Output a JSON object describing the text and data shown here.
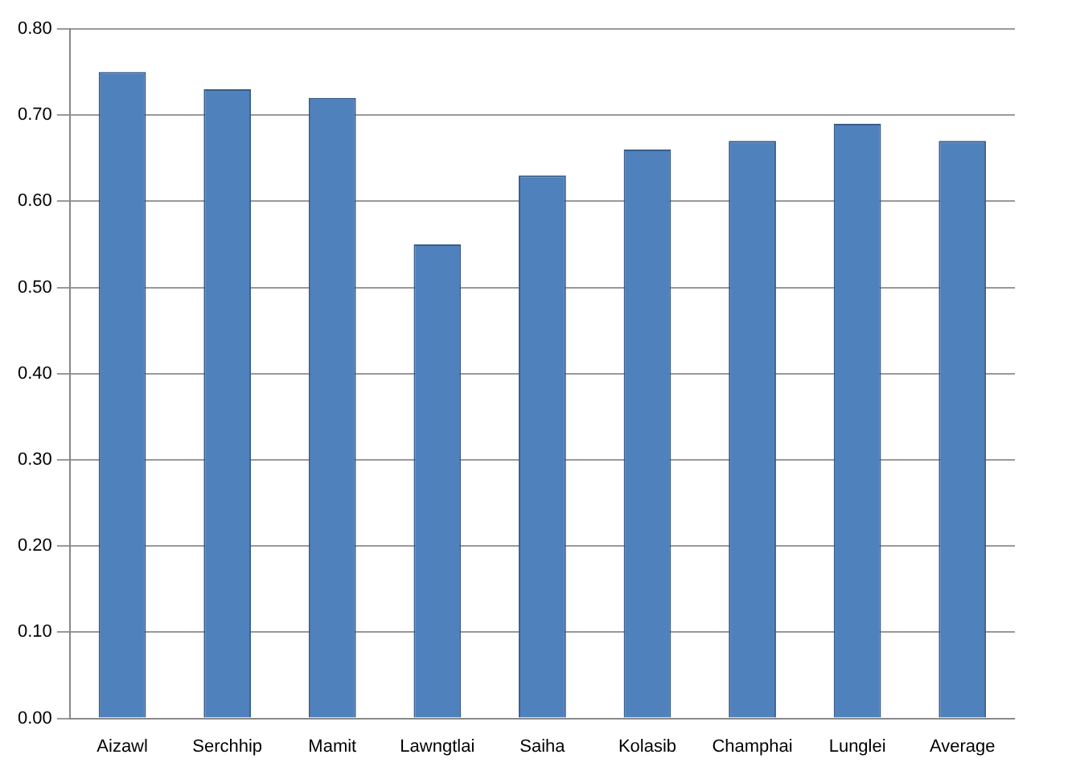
{
  "chart_data": {
    "type": "bar",
    "categories": [
      "Aizawl",
      "Serchhip",
      "Mamit",
      "Lawngtlai",
      "Saiha",
      "Kolasib",
      "Champhai",
      "Lunglei",
      "Average"
    ],
    "values": [
      0.75,
      0.73,
      0.72,
      0.55,
      0.63,
      0.66,
      0.67,
      0.69,
      0.67
    ],
    "color": "#4f81bd",
    "ylim": [
      0,
      0.8
    ],
    "yticks": [
      {
        "value": 0,
        "label": "0.00"
      },
      {
        "value": 0.1,
        "label": "0.10"
      },
      {
        "value": 0.2,
        "label": "0.20"
      },
      {
        "value": 0.3,
        "label": "0.30"
      },
      {
        "value": 0.4,
        "label": "0.40"
      },
      {
        "value": 0.5,
        "label": "0.50"
      },
      {
        "value": 0.6,
        "label": "0.60"
      },
      {
        "value": 0.7,
        "label": "0.70"
      },
      {
        "value": 0.8,
        "label": "0.80"
      }
    ],
    "grid": "y"
  }
}
